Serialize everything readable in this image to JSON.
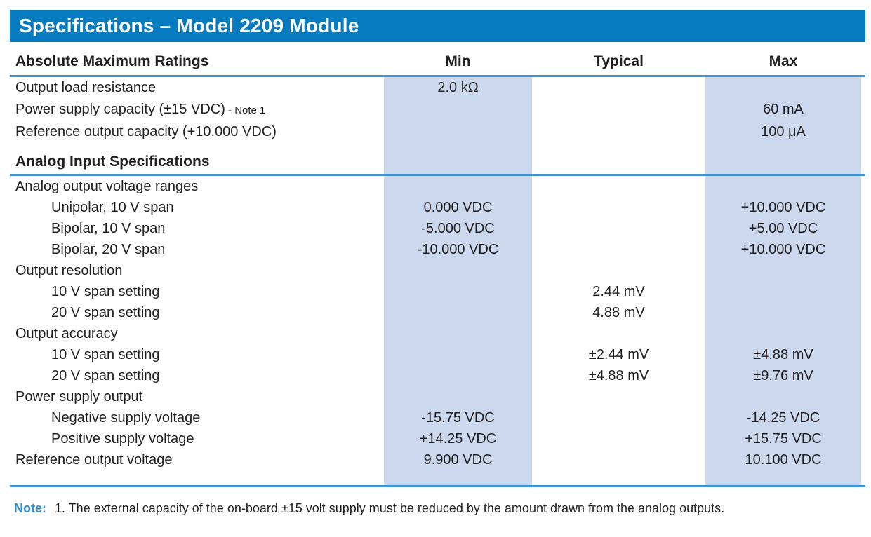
{
  "header": {
    "title": "Specifications – Model 2209 Module"
  },
  "table": {
    "columns": [
      {
        "key": "label",
        "label": "Absolute Maximum Ratings"
      },
      {
        "key": "min",
        "label": "Min"
      },
      {
        "key": "typical",
        "label": "Typical"
      },
      {
        "key": "max",
        "label": "Max"
      }
    ],
    "rows": [
      {
        "label": "Output load resistance",
        "indent": 0,
        "min": "2.0 kΩ",
        "typical": "",
        "max": ""
      },
      {
        "label": "Power supply capacity (±15 VDC)",
        "label_note": "- Note 1",
        "indent": 0,
        "min": "",
        "typical": "",
        "max": "60 mA"
      },
      {
        "label": "Reference output capacity (+10.000 VDC)",
        "indent": 0,
        "min": "",
        "typical": "",
        "max": "100 μA"
      },
      {
        "section": true,
        "label": "Analog Input Specifications"
      },
      {
        "label": "Analog output voltage ranges",
        "indent": 0,
        "min": "",
        "typical": "",
        "max": ""
      },
      {
        "label": "Unipolar, 10 V span",
        "indent": 1,
        "min": "0.000 VDC",
        "typical": "",
        "max": "+10.000 VDC"
      },
      {
        "label": "Bipolar, 10 V span",
        "indent": 1,
        "min": "-5.000 VDC",
        "typical": "",
        "max": "+5.00 VDC"
      },
      {
        "label": "Bipolar, 20 V span",
        "indent": 1,
        "min": "-10.000 VDC",
        "typical": "",
        "max": "+10.000 VDC"
      },
      {
        "label": "Output resolution",
        "indent": 0,
        "min": "",
        "typical": "",
        "max": ""
      },
      {
        "label": "10 V span setting",
        "indent": 1,
        "min": "",
        "typical": "2.44 mV",
        "max": ""
      },
      {
        "label": "20 V span setting",
        "indent": 1,
        "min": "",
        "typical": "4.88 mV",
        "max": ""
      },
      {
        "label": "Output accuracy",
        "indent": 0,
        "min": "",
        "typical": "",
        "max": ""
      },
      {
        "label": "10 V span setting",
        "indent": 1,
        "min": "",
        "typical": "±2.44 mV",
        "max": "±4.88 mV"
      },
      {
        "label": "20 V span setting",
        "indent": 1,
        "min": "",
        "typical": "±4.88 mV",
        "max": "±9.76 mV"
      },
      {
        "label": "Power supply output",
        "indent": 0,
        "min": "",
        "typical": "",
        "max": ""
      },
      {
        "label": "Negative supply voltage",
        "indent": 1,
        "min": "-15.75 VDC",
        "typical": "",
        "max": "-14.25 VDC"
      },
      {
        "label": "Positive supply voltage",
        "indent": 1,
        "min": "+14.25 VDC",
        "typical": "",
        "max": "+15.75 VDC"
      },
      {
        "label": "Reference output voltage",
        "indent": 0,
        "min": "9.900 VDC",
        "typical": "",
        "max": "10.100 VDC"
      }
    ]
  },
  "note": {
    "label": "Note:",
    "text": "1. The external capacity of the on-board ±15 volt supply must be reduced by the amount drawn from the analog outputs."
  },
  "colors": {
    "title_bar": "#077bbf",
    "column_band": "#ccd8ee",
    "rule_line": "#4292cf",
    "note_label": "#2e8fcf",
    "body_text": "#231f20",
    "title_text": "#ffffff"
  }
}
